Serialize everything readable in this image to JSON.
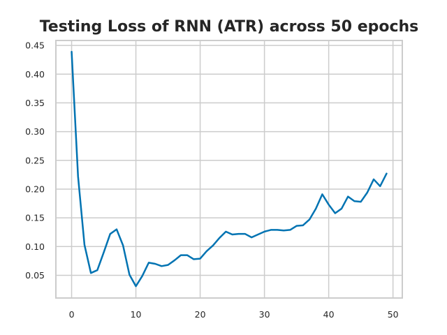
{
  "chart_data": {
    "type": "line",
    "title": "Testing Loss of RNN (ATR) across 50 epochs",
    "xlabel": "",
    "ylabel": "",
    "xlim": [
      -2.45,
      51.45
    ],
    "ylim": [
      0.0105,
      0.4586
    ],
    "x_ticks": [
      0,
      10,
      20,
      30,
      40,
      50
    ],
    "y_ticks": [
      0.05,
      0.1,
      0.15,
      0.2,
      0.25,
      0.3,
      0.35,
      0.4,
      0.45
    ],
    "y_tick_labels": [
      "0.05",
      "0.10",
      "0.15",
      "0.20",
      "0.25",
      "0.30",
      "0.35",
      "0.40",
      "0.45"
    ],
    "grid": true,
    "colors": {
      "line": "#0173b2",
      "grid": "#cccccc",
      "axes": "#cccccc",
      "text": "#262626"
    },
    "series": [
      {
        "name": "",
        "x": [
          0,
          1,
          2,
          3,
          4,
          5,
          6,
          7,
          8,
          9,
          10,
          11,
          12,
          13,
          14,
          15,
          16,
          17,
          18,
          19,
          20,
          21,
          22,
          23,
          24,
          25,
          26,
          27,
          28,
          29,
          30,
          31,
          32,
          33,
          34,
          35,
          36,
          37,
          38,
          39,
          40,
          41,
          42,
          43,
          44,
          45,
          46,
          47,
          48,
          49
        ],
        "values": [
          0.439,
          0.222,
          0.103,
          0.054,
          0.059,
          0.09,
          0.122,
          0.13,
          0.102,
          0.051,
          0.031,
          0.049,
          0.072,
          0.07,
          0.066,
          0.068,
          0.076,
          0.085,
          0.085,
          0.078,
          0.079,
          0.092,
          0.102,
          0.115,
          0.126,
          0.121,
          0.122,
          0.122,
          0.116,
          0.121,
          0.126,
          0.129,
          0.129,
          0.128,
          0.129,
          0.136,
          0.137,
          0.147,
          0.166,
          0.191,
          0.173,
          0.158,
          0.166,
          0.187,
          0.179,
          0.178,
          0.194,
          0.217,
          0.205,
          0.227
        ]
      }
    ]
  }
}
